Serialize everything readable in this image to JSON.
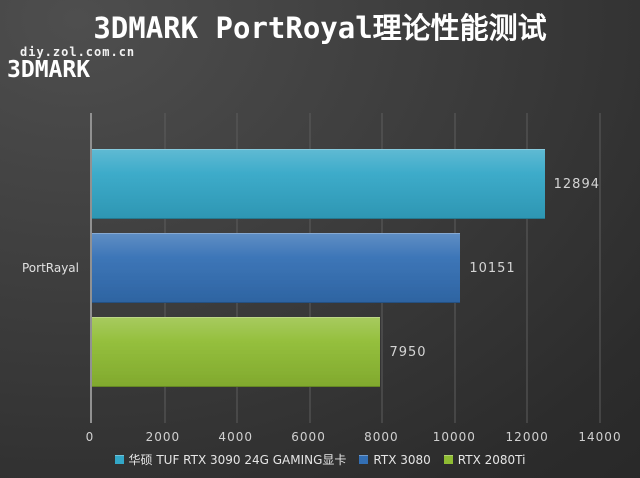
{
  "page": {
    "title": "3DMARK PortRoyal理论性能测试",
    "watermark": "diy.zol.com.cn",
    "section_label": "3DMARK"
  },
  "chart_data": {
    "type": "bar",
    "orientation": "horizontal",
    "title": "3DMARK PortRoyal理论性能测试",
    "category": "PortRayal",
    "series": [
      {
        "name": "华硕 TUF RTX 3090 24G GAMING显卡",
        "value": 12894,
        "color": "#33a7c7"
      },
      {
        "name": "RTX 3080",
        "value": 10151,
        "color": "#336fb4"
      },
      {
        "name": "RTX 2080Ti",
        "value": 7950,
        "color": "#8fbc33"
      }
    ],
    "xlim": [
      0,
      14000
    ],
    "x_ticks": [
      0,
      2000,
      4000,
      6000,
      8000,
      10000,
      12000,
      14000
    ],
    "grid": true,
    "legend_position": "bottom"
  },
  "colors": {
    "background_light": "#4e4e4e",
    "background_dark": "#262626",
    "axis_line": "#919191",
    "gridline": "#5d5d5d",
    "tick_text": "#d0d0d0",
    "value_text": "#d4d4d4",
    "title_text": "#ffffff"
  }
}
